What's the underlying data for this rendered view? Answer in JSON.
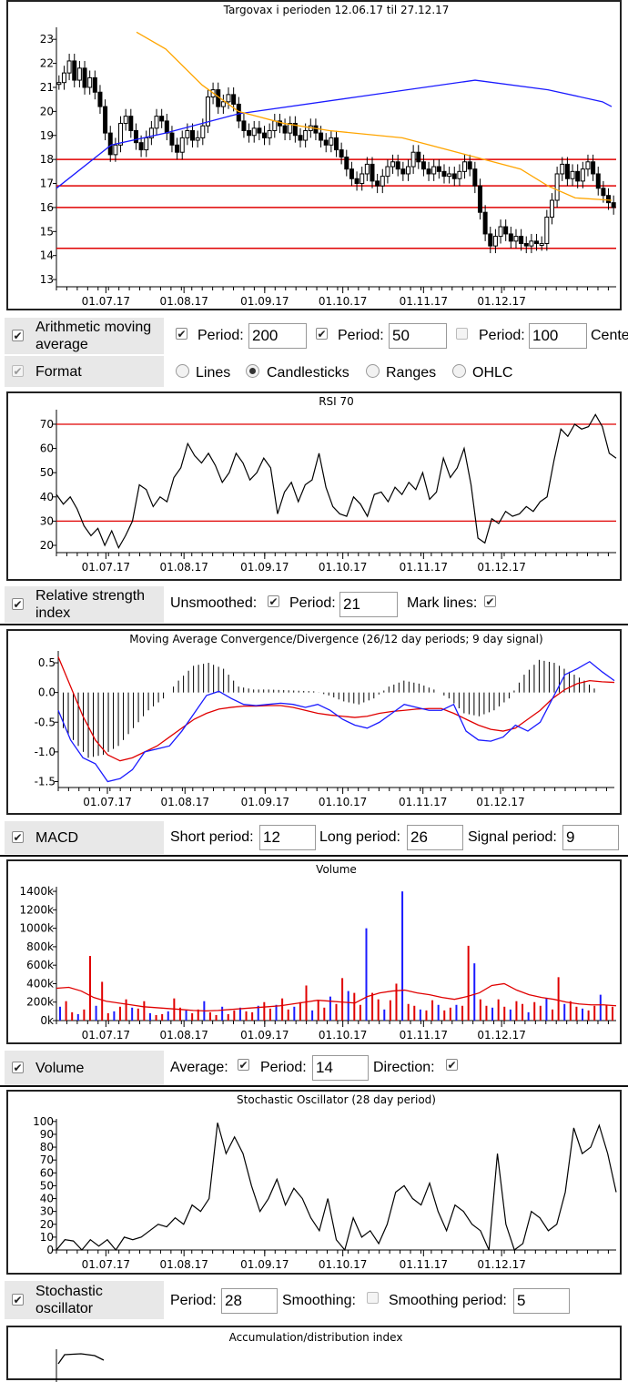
{
  "colors": {
    "candle": "#000000",
    "ma200": "#1a1aff",
    "ma50": "#ffa500",
    "hline": "#e00000",
    "rsi": "#000000",
    "macd": "#1a1aff",
    "signal": "#e00000",
    "vol_up": "#1a1aff",
    "vol_down": "#e00000",
    "vol_avg": "#e00000",
    "stoch": "#000000"
  },
  "x_ticks": [
    "01.07.17",
    "01.08.17",
    "01.09.17",
    "01.10.17",
    "01.11.17",
    "01.12.17"
  ],
  "chart_data": [
    {
      "type": "candlestick",
      "title": "Targovax i perioden 12.06.17 til 27.12.17",
      "ylim": [
        12.7,
        23.5
      ],
      "yticks": [
        13,
        14,
        15,
        16,
        17,
        18,
        19,
        20,
        21,
        22,
        23
      ],
      "close": [
        21.2,
        21.6,
        22.1,
        21.3,
        21.8,
        21.0,
        21.4,
        20.8,
        20.2,
        19.1,
        18.2,
        18.6,
        19.5,
        19.8,
        19.2,
        18.7,
        18.4,
        18.9,
        19.3,
        19.8,
        19.6,
        19.1,
        18.6,
        18.3,
        18.9,
        19.2,
        18.8,
        18.9,
        19.4,
        20.6,
        20.9,
        20.2,
        20.4,
        20.7,
        20.3,
        19.6,
        19.2,
        19.0,
        19.3,
        19.1,
        18.9,
        19.2,
        19.6,
        19.4,
        19.1,
        19.5,
        19.0,
        18.8,
        19.2,
        19.4,
        19.1,
        18.8,
        18.6,
        18.9,
        18.4,
        18.1,
        17.6,
        17.2,
        17.0,
        17.4,
        17.8,
        17.1,
        16.9,
        17.3,
        17.7,
        17.9,
        17.6,
        17.4,
        17.7,
        18.3,
        17.9,
        17.6,
        17.4,
        17.7,
        17.5,
        17.3,
        17.4,
        17.2,
        17.5,
        17.9,
        17.6,
        16.9,
        15.8,
        14.9,
        14.4,
        14.8,
        15.2,
        14.9,
        14.6,
        14.8,
        14.5,
        14.4,
        14.6,
        14.5,
        14.5,
        15.6,
        16.3,
        17.4,
        17.8,
        17.2,
        17.5,
        17.1,
        17.6,
        17.9,
        17.4,
        16.8,
        16.5,
        16.2,
        16.0
      ],
      "ma200": [
        [
          0,
          16.8
        ],
        [
          60,
          18.6
        ],
        [
          120,
          19.1
        ],
        [
          200,
          19.9
        ],
        [
          330,
          20.6
        ],
        [
          460,
          21.3
        ],
        [
          540,
          20.9
        ],
        [
          600,
          20.4
        ],
        [
          610,
          20.2
        ]
      ],
      "ma50": [
        [
          88,
          23.3
        ],
        [
          120,
          22.6
        ],
        [
          160,
          21.1
        ],
        [
          200,
          20.0
        ],
        [
          250,
          19.5
        ],
        [
          300,
          19.2
        ],
        [
          380,
          18.9
        ],
        [
          450,
          18.2
        ],
        [
          510,
          17.6
        ],
        [
          540,
          16.9
        ],
        [
          570,
          16.4
        ],
        [
          610,
          16.3
        ]
      ],
      "hlines": [
        18.0,
        16.9,
        16.0,
        14.3
      ]
    },
    {
      "type": "line",
      "title": "RSI 70",
      "ylim": [
        17,
        76
      ],
      "yticks": [
        20,
        30,
        40,
        50,
        60,
        70
      ],
      "marks": [
        70,
        30
      ],
      "values": [
        41,
        37,
        40,
        35,
        28,
        24,
        27,
        20,
        26,
        19,
        24,
        30,
        45,
        43,
        36,
        40,
        38,
        48,
        52,
        62,
        57,
        54,
        58,
        53,
        46,
        50,
        58,
        54,
        47,
        50,
        56,
        52,
        33,
        42,
        46,
        38,
        45,
        47,
        58,
        44,
        36,
        33,
        32,
        40,
        37,
        32,
        41,
        42,
        38,
        44,
        41,
        46,
        43,
        50,
        39,
        42,
        56,
        48,
        52,
        60,
        45,
        23,
        21,
        31,
        29,
        34,
        32,
        33,
        36,
        34,
        38,
        40,
        55,
        68,
        65,
        70,
        68,
        69,
        74,
        69,
        58,
        56
      ]
    },
    {
      "type": "bar+line",
      "title": "Moving Average Convergence/Divergence (26/12 day periods; 9 day signal)",
      "ylim": [
        -1.6,
        0.7
      ],
      "yticks": [
        0.5,
        0.0,
        -0.5,
        -1.0,
        -1.5
      ],
      "macd": [
        -0.3,
        -0.8,
        -1.1,
        -1.2,
        -1.5,
        -1.45,
        -1.3,
        -1.0,
        -0.95,
        -0.9,
        -0.65,
        -0.35,
        -0.05,
        0.02,
        -0.1,
        -0.2,
        -0.22,
        -0.2,
        -0.18,
        -0.2,
        -0.25,
        -0.2,
        -0.3,
        -0.45,
        -0.55,
        -0.6,
        -0.5,
        -0.35,
        -0.2,
        -0.25,
        -0.3,
        -0.3,
        -0.2,
        -0.65,
        -0.8,
        -0.82,
        -0.75,
        -0.55,
        -0.65,
        -0.5,
        -0.1,
        0.3,
        0.4,
        0.52,
        0.35,
        0.2
      ],
      "signal": [
        0.6,
        0.1,
        -0.4,
        -0.8,
        -1.05,
        -1.15,
        -1.1,
        -1.0,
        -0.9,
        -0.75,
        -0.6,
        -0.45,
        -0.35,
        -0.28,
        -0.25,
        -0.23,
        -0.23,
        -0.22,
        -0.22,
        -0.25,
        -0.3,
        -0.35,
        -0.38,
        -0.4,
        -0.42,
        -0.4,
        -0.35,
        -0.32,
        -0.3,
        -0.28,
        -0.27,
        -0.27,
        -0.35,
        -0.45,
        -0.55,
        -0.62,
        -0.65,
        -0.6,
        -0.45,
        -0.3,
        -0.1,
        0.05,
        0.15,
        0.2,
        0.18,
        0.17
      ],
      "hist": [
        -0.5,
        -0.8,
        -1.1,
        -1.05,
        -0.9,
        -0.6,
        -0.3,
        -0.1,
        0.2,
        0.45,
        0.5,
        0.4,
        0.1,
        0.05,
        0.05,
        0.04,
        0.03,
        0.02,
        -0.05,
        -0.15,
        -0.2,
        -0.1,
        0.1,
        0.2,
        0.15,
        0.05,
        -0.1,
        -0.35,
        -0.4,
        -0.3,
        -0.1,
        0.3,
        0.55,
        0.5,
        0.35,
        0.2,
        0.0
      ]
    },
    {
      "type": "bar",
      "title": "Volume",
      "ylim": [
        0,
        1450000
      ],
      "yticks": [
        "1400k",
        "1200k",
        "1000k",
        "800k",
        "600k",
        "400k",
        "200k",
        "0k"
      ],
      "values": [
        150,
        210,
        90,
        70,
        120,
        700,
        160,
        420,
        80,
        100,
        150,
        230,
        140,
        130,
        210,
        80,
        60,
        70,
        100,
        240,
        140,
        110,
        80,
        120,
        210,
        90,
        60,
        150,
        70,
        110,
        140,
        100,
        90,
        160,
        200,
        130,
        170,
        240,
        120,
        150,
        200,
        380,
        110,
        220,
        140,
        260,
        180,
        460,
        320,
        300,
        170,
        1000,
        300,
        230,
        120,
        220,
        400,
        1400,
        180,
        160,
        120,
        110,
        220,
        170,
        110,
        140,
        170,
        160,
        810,
        620,
        230,
        160,
        140,
        230,
        150,
        120,
        210,
        180,
        90,
        200,
        160,
        240,
        120,
        470,
        180,
        210,
        150,
        130,
        110,
        160,
        280,
        170,
        150
      ],
      "avg": [
        350,
        360,
        320,
        250,
        210,
        190,
        170,
        150,
        140,
        130,
        120,
        110,
        105,
        110,
        120,
        130,
        140,
        150,
        160,
        180,
        200,
        220,
        210,
        200,
        190,
        260,
        300,
        320,
        330,
        300,
        280,
        250,
        230,
        260,
        300,
        380,
        400,
        330,
        280,
        250,
        230,
        200,
        180,
        170,
        170,
        160
      ]
    },
    {
      "type": "line",
      "title": "Stochastic Oscillator (28 day period)",
      "ylim": [
        0,
        102
      ],
      "yticks": [
        100,
        90,
        80,
        70,
        60,
        50,
        40,
        30,
        20,
        10,
        0
      ],
      "values": [
        0,
        8,
        7,
        0,
        8,
        3,
        8,
        0,
        10,
        8,
        10,
        15,
        20,
        18,
        25,
        20,
        35,
        30,
        40,
        99,
        75,
        88,
        75,
        50,
        30,
        40,
        55,
        35,
        48,
        40,
        25,
        15,
        40,
        8,
        0,
        25,
        10,
        15,
        5,
        20,
        45,
        50,
        40,
        35,
        52,
        30,
        15,
        35,
        30,
        20,
        15,
        0,
        75,
        20,
        0,
        5,
        30,
        25,
        15,
        20,
        45,
        95,
        75,
        80,
        97,
        75,
        45
      ]
    }
  ],
  "controls": {
    "ama": {
      "label": "Arithmetic moving average",
      "period_label": "Period:",
      "p1": "200",
      "p2": "50",
      "p3": "100",
      "center_label": "Cente"
    },
    "format": {
      "label": "Format",
      "lines": "Lines",
      "candlesticks": "Candlesticks",
      "ranges": "Ranges",
      "ohlc": "OHLC"
    },
    "rsi": {
      "label": "Relative strength index",
      "unsmoothed": "Unsmoothed:",
      "period_label": "Period:",
      "period": "21",
      "marklines": "Mark lines:"
    },
    "macd": {
      "label": "MACD",
      "short_label": "Short period:",
      "short": "12",
      "long_label": "Long period:",
      "long": "26",
      "signal_label": "Signal period:",
      "signal": "9"
    },
    "volume": {
      "label": "Volume",
      "average": "Average:",
      "period_label": "Period:",
      "period": "14",
      "direction": "Direction:"
    },
    "stoch": {
      "label": "Stochastic oscillator",
      "period_label": "Period:",
      "period": "28",
      "smoothing": "Smoothing:",
      "smoothing_period_label": "Smoothing period:",
      "smoothing_period": "5"
    }
  },
  "acc_title": "Accumulation/distribution index",
  "check_mark": "✔"
}
